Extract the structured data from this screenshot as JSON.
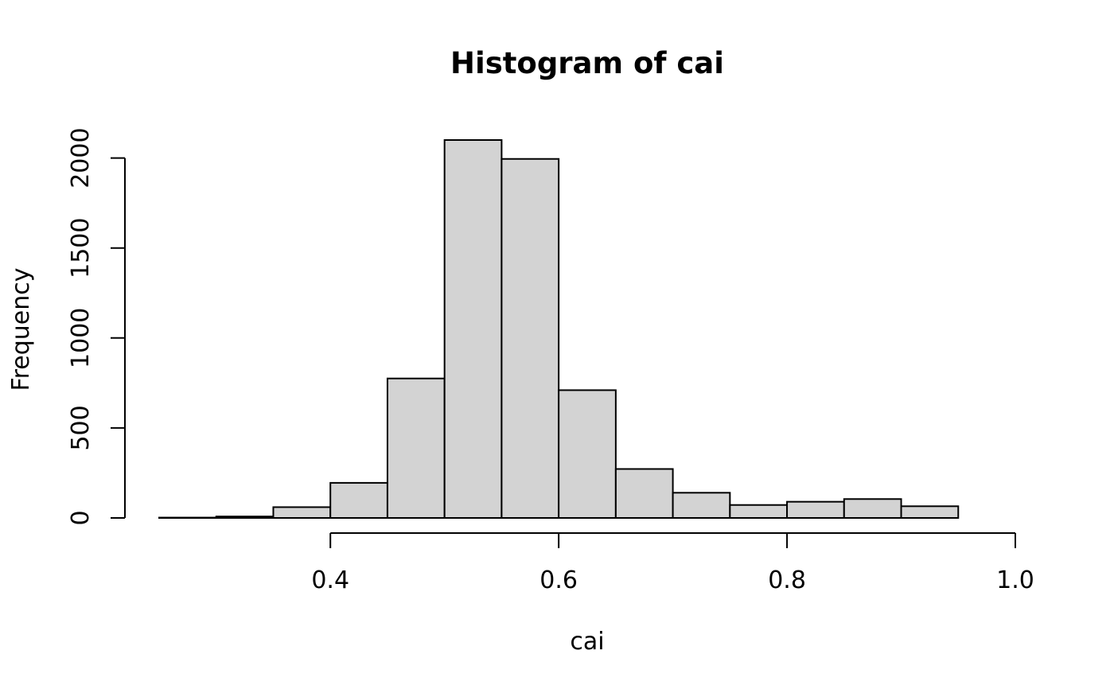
{
  "chart_data": {
    "type": "bar",
    "title": "Histogram of cai",
    "xlabel": "cai",
    "ylabel": "Frequency",
    "bin_edges": [
      0.25,
      0.3,
      0.35,
      0.4,
      0.45,
      0.5,
      0.55,
      0.6,
      0.65,
      0.7,
      0.75,
      0.8,
      0.85,
      0.9,
      0.95,
      1.0
    ],
    "values": [
      2,
      8,
      60,
      195,
      775,
      2100,
      1995,
      710,
      272,
      140,
      72,
      90,
      105,
      65,
      0
    ],
    "xlim": [
      0.25,
      1.0
    ],
    "ylim": [
      0,
      2100
    ],
    "xticks": [
      "0.4",
      "0.6",
      "0.8",
      "1.0"
    ],
    "yticks": [
      "0",
      "500",
      "1000",
      "1500",
      "2000"
    ],
    "bar_fill": "#d3d3d3",
    "bar_stroke": "#000000",
    "grid": false
  }
}
